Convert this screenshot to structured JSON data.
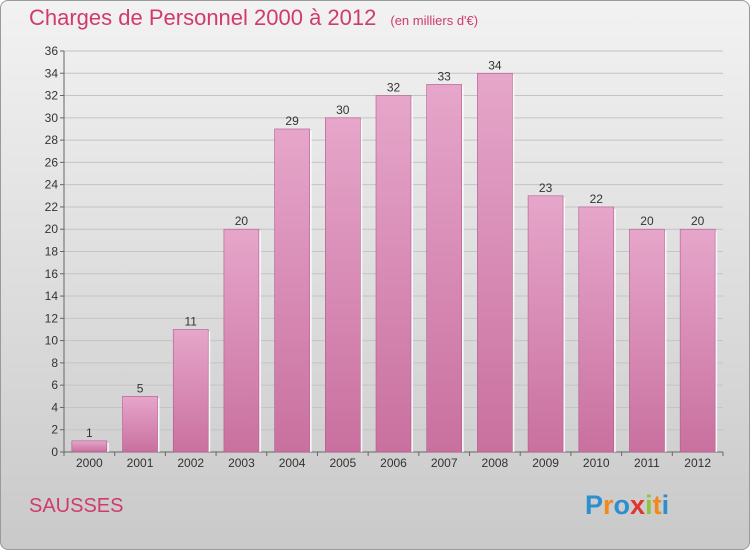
{
  "title": "Charges de Personnel 2000 à 2012",
  "subtitle": "(en milliers d'€)",
  "location": "SAUSSES",
  "logo_letters": [
    {
      "ch": "P",
      "color": "#2d8fd0"
    },
    {
      "ch": "r",
      "color": "#f08a1c"
    },
    {
      "ch": "o",
      "color": "#2d8fd0"
    },
    {
      "ch": "x",
      "color": "#e0342c"
    },
    {
      "ch": "i",
      "color": "#8bc53f"
    },
    {
      "ch": "t",
      "color": "#f08a1c"
    },
    {
      "ch": "i",
      "color": "#2d8fd0"
    }
  ],
  "chart_data": {
    "type": "bar",
    "categories": [
      "2000",
      "2001",
      "2002",
      "2003",
      "2004",
      "2005",
      "2006",
      "2007",
      "2008",
      "2009",
      "2010",
      "2011",
      "2012"
    ],
    "values": [
      1,
      5,
      11,
      20,
      29,
      30,
      32,
      33,
      34,
      23,
      22,
      20,
      20
    ],
    "ylim": [
      0,
      36
    ],
    "yticks": [
      0,
      2,
      4,
      6,
      8,
      10,
      12,
      14,
      16,
      18,
      20,
      22,
      24,
      26,
      28,
      30,
      32,
      34,
      36
    ],
    "grid": true,
    "data_labels": true,
    "bar_color": "#c9709f",
    "bar_color_light": "#e6a6ca"
  }
}
